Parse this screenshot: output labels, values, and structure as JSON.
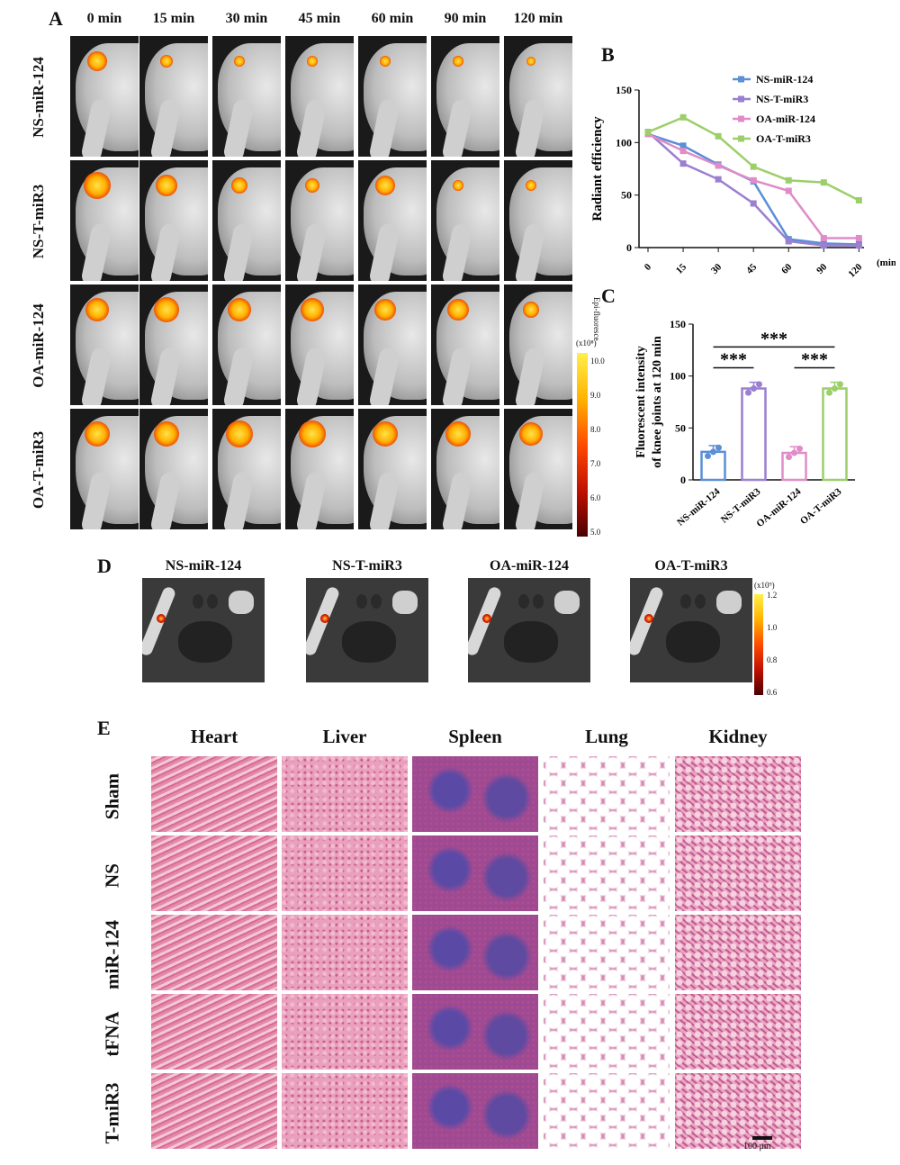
{
  "panels": {
    "a": "A",
    "b": "B",
    "c": "C",
    "d": "D",
    "e": "E"
  },
  "panel_a": {
    "times": [
      "0 min",
      "15 min",
      "30 min",
      "45 min",
      "60 min",
      "90 min",
      "120 min"
    ],
    "groups": [
      "NS-miR-124",
      "NS-T-miR3",
      "OA-miR-124",
      "OA-T-miR3"
    ],
    "colorbar": {
      "title": "Epi-fluoresce",
      "unit": "(x10⁸)",
      "ticks": [
        "10.0",
        "9.0",
        "8.0",
        "7.0",
        "6.0",
        "5.0"
      ]
    }
  },
  "panel_d": {
    "groups": [
      "NS-miR-124",
      "NS-T-miR3",
      "OA-miR-124",
      "OA-T-miR3"
    ],
    "colorbar": {
      "unit": "(x10⁹)",
      "ticks": [
        "1.2",
        "1.0",
        "0.8",
        "0.6"
      ]
    }
  },
  "panel_e": {
    "tissues": [
      "Heart",
      "Liver",
      "Spleen",
      "Lung",
      "Kidney"
    ],
    "groups": [
      "Sham",
      "NS",
      "miR-124",
      "tFNA",
      "T-miR3"
    ],
    "scale_bar": "100 μm"
  },
  "chart_data": [
    {
      "type": "line",
      "title": "",
      "xlabel": "(min)",
      "ylabel": "Radiant efficiency",
      "x": [
        0,
        15,
        30,
        45,
        60,
        90,
        120
      ],
      "ylim": [
        0,
        150
      ],
      "yticks": [
        0,
        50,
        100,
        150
      ],
      "series": [
        {
          "name": "NS-miR-124",
          "color": "#5b8fd6",
          "values": [
            108,
            97,
            79,
            63,
            8,
            4,
            3
          ]
        },
        {
          "name": "NS-T-miR3",
          "color": "#9b7fd0",
          "values": [
            110,
            80,
            65,
            42,
            6,
            2,
            2
          ]
        },
        {
          "name": "OA-miR-124",
          "color": "#e08cc8",
          "values": [
            108,
            92,
            78,
            64,
            54,
            9,
            9
          ]
        },
        {
          "name": "OA-T-miR3",
          "color": "#9ccf6a",
          "values": [
            110,
            124,
            106,
            77,
            64,
            62,
            45
          ]
        }
      ]
    },
    {
      "type": "bar",
      "ylabel": "Fluorescent intensity\nof knee joints at 120 min",
      "ylabel_line1": "Fluorescent intensity",
      "ylabel_line2": "of knee joints at 120 min",
      "categories": [
        "NS-miR-124",
        "NS-T-miR3",
        "OA-miR-124",
        "OA-T-miR3"
      ],
      "values": [
        27,
        88,
        26,
        88
      ],
      "colors": [
        "#5b8fd6",
        "#9b7fd0",
        "#e08cc8",
        "#9ccf6a"
      ],
      "ylim": [
        0,
        150
      ],
      "yticks": [
        0,
        50,
        100,
        150
      ],
      "annotations": [
        "***",
        "***",
        "***"
      ]
    }
  ]
}
